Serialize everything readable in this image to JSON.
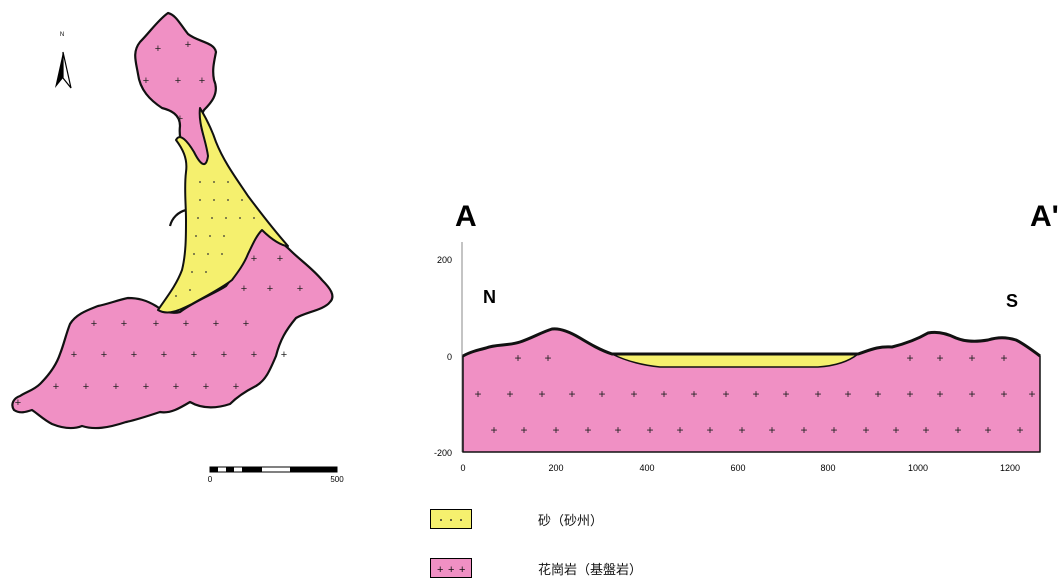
{
  "map": {
    "north_label": "N",
    "scale_ticks": [
      "0",
      "500"
    ],
    "colors": {
      "granite": "#f090c4",
      "sand": "#f5f06e",
      "outline": "#111111"
    }
  },
  "section": {
    "left_label": "A",
    "right_label": "A'",
    "north_label": "N",
    "south_label": "S",
    "y_ticks": [
      "200",
      "0",
      "-200"
    ],
    "x_ticks": [
      "0",
      "200",
      "400",
      "600",
      "800",
      "1000",
      "1200"
    ]
  },
  "legend": [
    {
      "key": "sand",
      "label": "砂（砂州）",
      "symbol": "dots"
    },
    {
      "key": "granite",
      "label": "花崗岩（基盤岩）",
      "symbol": "crosses"
    }
  ]
}
